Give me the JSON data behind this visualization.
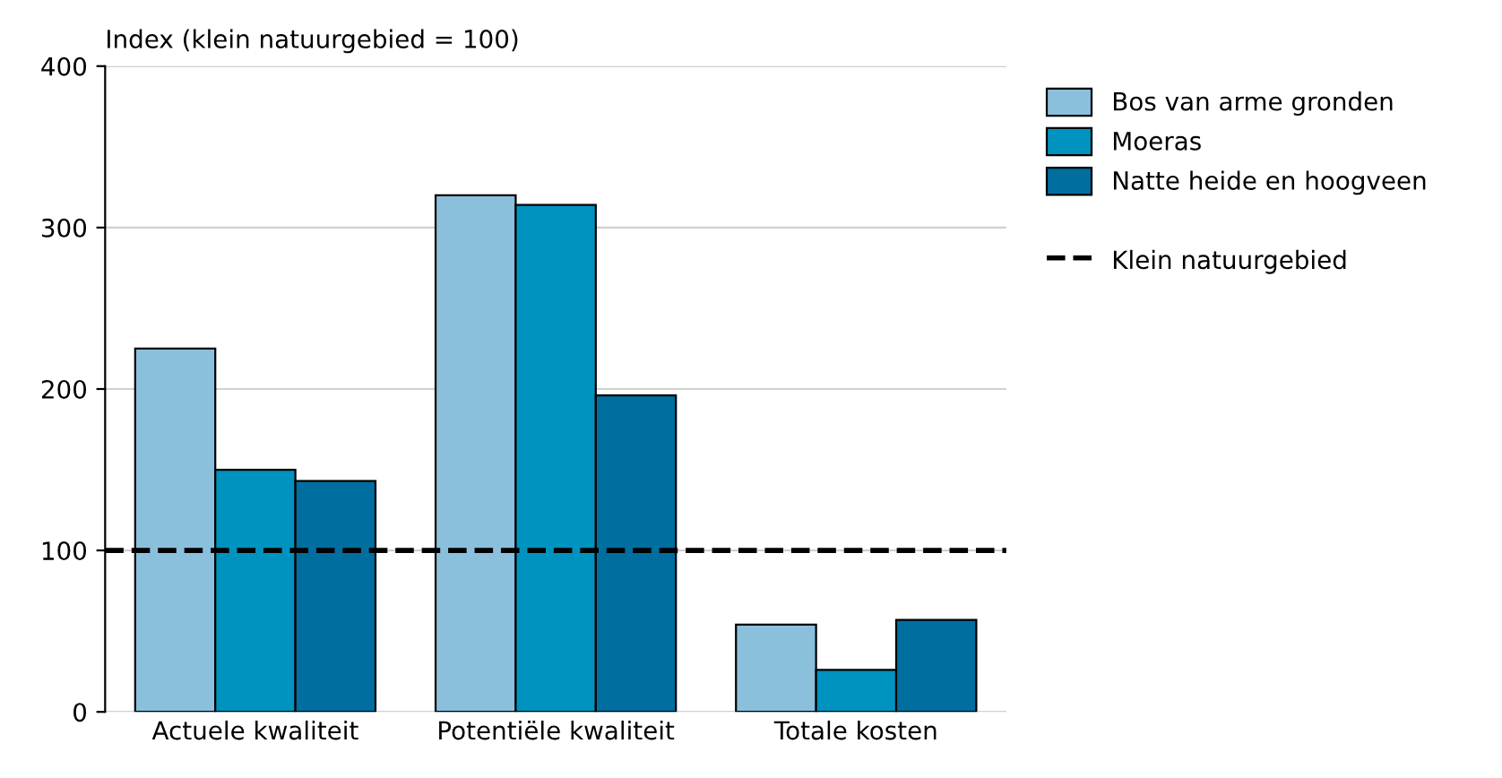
{
  "chart_data": {
    "type": "bar",
    "ylabel": "Index (klein natuurgebied = 100)",
    "categories": [
      "Actuele kwaliteit",
      "Potentiële kwaliteit",
      "Totale kosten"
    ],
    "series": [
      {
        "name": "Bos van arme gronden",
        "color": "#8bc0dd",
        "values": [
          225,
          320,
          54
        ]
      },
      {
        "name": "Moeras",
        "color": "#0093c0",
        "values": [
          150,
          314,
          26
        ]
      },
      {
        "name": "Natte heide en hoogveen",
        "color": "#006fa0",
        "values": [
          143,
          196,
          57
        ]
      }
    ],
    "ylim": [
      0,
      400
    ],
    "yticks": [
      0,
      100,
      200,
      300,
      400
    ],
    "grid": "y",
    "legend": "right",
    "ref_lines": [
      {
        "axis": "y",
        "value": 100,
        "label": "Klein natuurgebied",
        "color": "#000000",
        "line_style": "dashed"
      }
    ]
  }
}
